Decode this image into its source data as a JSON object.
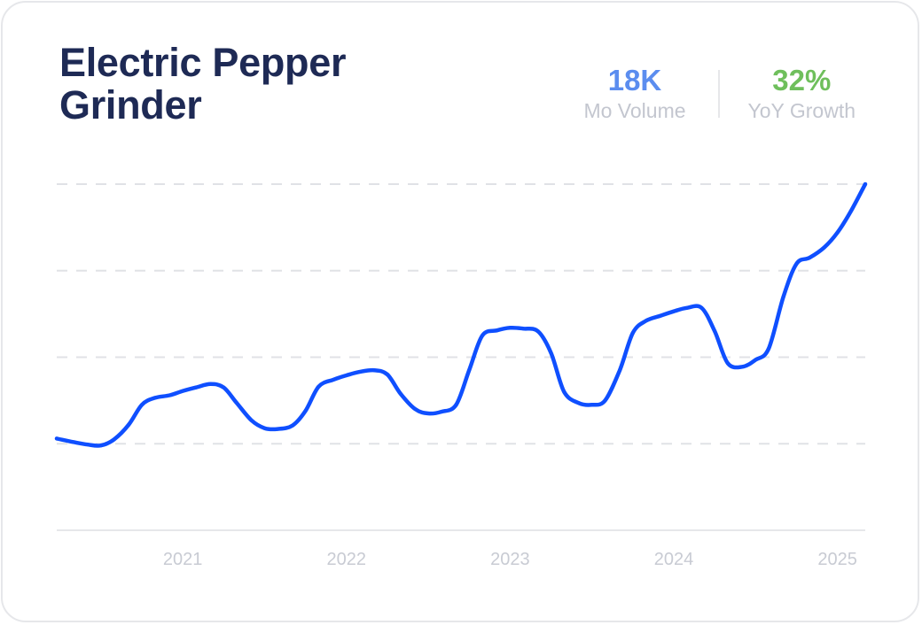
{
  "title": "Electric Pepper Grinder",
  "stats": {
    "volume": {
      "value": "18K",
      "label": "Mo Volume",
      "color": "#5b8def"
    },
    "growth": {
      "value": "32%",
      "label": "YoY Growth",
      "color": "#6fbf5c"
    }
  },
  "colors": {
    "line": "#0f4fff",
    "grid": "#e0e2e6",
    "axis": "#e6e7ea"
  },
  "chart_data": {
    "type": "line",
    "title": "Electric Pepper Grinder",
    "xlabel": "",
    "ylabel": "",
    "x_ticks": [
      "2021",
      "2022",
      "2023",
      "2024",
      "2025"
    ],
    "ylim": [
      0,
      4
    ],
    "grid": true,
    "gridlines": [
      1,
      2,
      3,
      4
    ],
    "series": [
      {
        "values": [
          [
            2020.23,
            1.06
          ],
          [
            2020.33,
            1.02
          ],
          [
            2020.42,
            0.99
          ],
          [
            2020.5,
            0.98
          ],
          [
            2020.58,
            1.05
          ],
          [
            2020.67,
            1.22
          ],
          [
            2020.75,
            1.45
          ],
          [
            2020.83,
            1.53
          ],
          [
            2020.92,
            1.56
          ],
          [
            2021.0,
            1.61
          ],
          [
            2021.08,
            1.65
          ],
          [
            2021.17,
            1.69
          ],
          [
            2021.25,
            1.65
          ],
          [
            2021.33,
            1.47
          ],
          [
            2021.42,
            1.27
          ],
          [
            2021.5,
            1.18
          ],
          [
            2021.58,
            1.17
          ],
          [
            2021.67,
            1.21
          ],
          [
            2021.75,
            1.38
          ],
          [
            2021.83,
            1.66
          ],
          [
            2021.92,
            1.74
          ],
          [
            2022.0,
            1.79
          ],
          [
            2022.08,
            1.83
          ],
          [
            2022.17,
            1.85
          ],
          [
            2022.25,
            1.8
          ],
          [
            2022.33,
            1.58
          ],
          [
            2022.42,
            1.4
          ],
          [
            2022.5,
            1.35
          ],
          [
            2022.58,
            1.37
          ],
          [
            2022.67,
            1.45
          ],
          [
            2022.75,
            1.85
          ],
          [
            2022.83,
            2.25
          ],
          [
            2022.92,
            2.31
          ],
          [
            2023.0,
            2.34
          ],
          [
            2023.08,
            2.33
          ],
          [
            2023.17,
            2.3
          ],
          [
            2023.25,
            2.05
          ],
          [
            2023.33,
            1.6
          ],
          [
            2023.42,
            1.47
          ],
          [
            2023.5,
            1.45
          ],
          [
            2023.58,
            1.5
          ],
          [
            2023.67,
            1.85
          ],
          [
            2023.75,
            2.28
          ],
          [
            2023.83,
            2.42
          ],
          [
            2023.92,
            2.48
          ],
          [
            2024.0,
            2.53
          ],
          [
            2024.08,
            2.57
          ],
          [
            2024.17,
            2.57
          ],
          [
            2024.25,
            2.3
          ],
          [
            2024.33,
            1.93
          ],
          [
            2024.42,
            1.89
          ],
          [
            2024.5,
            1.97
          ],
          [
            2024.58,
            2.1
          ],
          [
            2024.67,
            2.7
          ],
          [
            2024.75,
            3.08
          ],
          [
            2024.83,
            3.15
          ],
          [
            2024.92,
            3.27
          ],
          [
            2025.0,
            3.44
          ],
          [
            2025.08,
            3.68
          ],
          [
            2025.17,
            4.0
          ]
        ]
      }
    ]
  }
}
